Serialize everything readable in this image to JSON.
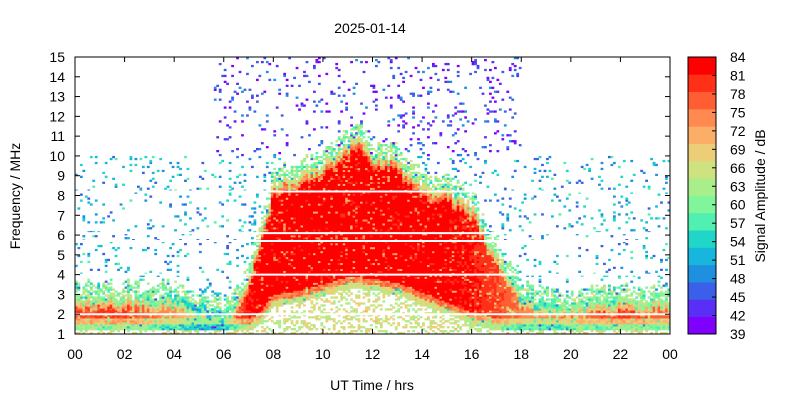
{
  "chart_data": {
    "type": "heatmap",
    "title": "2025-01-14",
    "xlabel": "UT Time / hrs",
    "ylabel": "Frequency / MHz",
    "xlim": [
      0,
      24
    ],
    "ylim": [
      1,
      15
    ],
    "x_tick_labels": [
      "00",
      "02",
      "04",
      "06",
      "08",
      "10",
      "12",
      "14",
      "16",
      "18",
      "20",
      "22",
      "00"
    ],
    "y_tick_labels": [
      "1",
      "2",
      "3",
      "4",
      "5",
      "6",
      "7",
      "8",
      "9",
      "10",
      "11",
      "12",
      "13",
      "14",
      "15"
    ],
    "colorbar": {
      "label": "Signal Amplitude / dB",
      "range": [
        39,
        84
      ],
      "tick_labels": [
        "39",
        "42",
        "45",
        "48",
        "51",
        "54",
        "57",
        "60",
        "63",
        "66",
        "69",
        "72",
        "75",
        "78",
        "81",
        "84"
      ],
      "colors": [
        "#7f00ff",
        "#5a2ff5",
        "#3a5fe8",
        "#1f8fe0",
        "#17b6dc",
        "#1fd6c8",
        "#4ff0b0",
        "#80f59a",
        "#a8ee8a",
        "#cee27f",
        "#eccd78",
        "#fbae68",
        "#fe8a50",
        "#ff5e35",
        "#ff2f18",
        "#ff0000"
      ]
    },
    "band_profile": {
      "time_hrs": [
        0,
        2,
        4,
        5,
        6,
        6.5,
        7,
        7.5,
        8,
        9,
        10,
        11,
        11.3,
        12,
        13,
        14,
        15,
        16,
        17,
        18,
        19,
        20,
        22,
        24
      ],
      "top_mhz": [
        2.9,
        2.9,
        2.9,
        2.5,
        2.0,
        2.6,
        4.0,
        6.0,
        8.5,
        9.0,
        9.6,
        10.5,
        11.0,
        10.0,
        9.8,
        8.5,
        8.3,
        7.5,
        5.0,
        3.0,
        2.5,
        2.5,
        2.7,
        2.8
      ],
      "bottom_mhz": [
        1.2,
        1.2,
        1.2,
        1.2,
        1.2,
        1.2,
        1.2,
        1.5,
        2.4,
        2.6,
        2.9,
        3.3,
        3.3,
        3.2,
        3.0,
        2.5,
        2.0,
        1.5,
        1.2,
        1.2,
        1.2,
        1.2,
        1.2,
        1.2
      ],
      "peak_db": [
        80,
        80,
        75,
        70,
        72,
        78,
        83,
        84,
        84,
        84,
        84,
        84,
        84,
        84,
        84,
        84,
        84,
        83,
        80,
        76,
        75,
        77,
        80,
        78
      ]
    },
    "noise_region": {
      "upper_scatter_hrs": [
        5.6,
        18
      ],
      "upper_scatter_mhz": [
        10,
        15
      ]
    },
    "gap_lines_mhz": [
      2.0,
      4.0,
      5.7,
      6.1,
      8.2
    ]
  }
}
